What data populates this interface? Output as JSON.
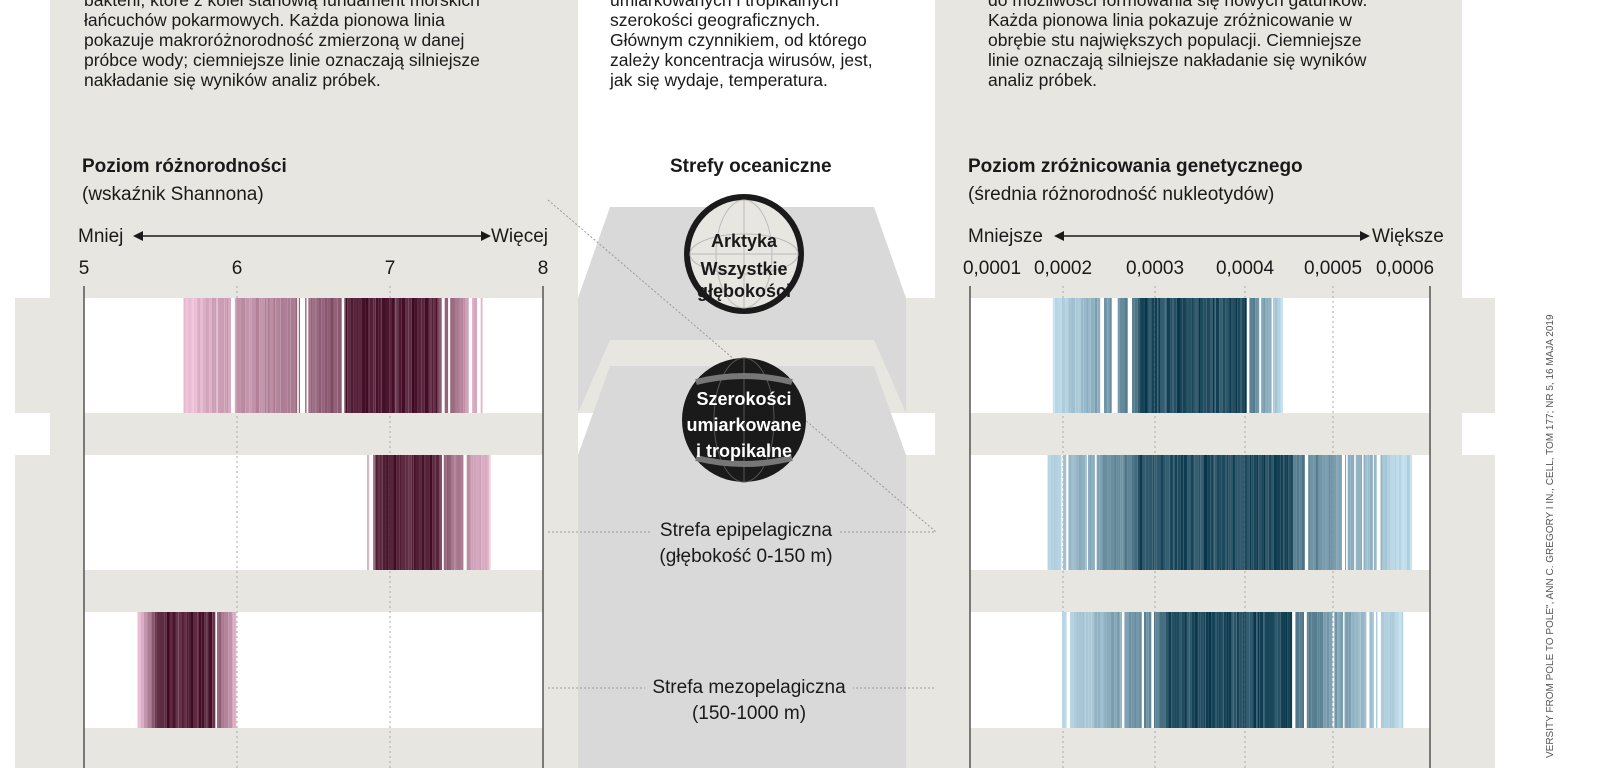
{
  "left_text": [
    "bakterii, które z kolei stanowią fundament morskich",
    "łańcuchów pokarmowych. Każda pionowa linia",
    "pokazuje makroróżnorodność zmierzoną w danej",
    "próbce wody; ciemniejsze linie oznaczają silniejsze",
    "nakładanie się wyników analiz próbek."
  ],
  "center_text": [
    "umiarkowanych i tropikalnych",
    "szerokości geograficznych.",
    "Głównym czynnikiem, od którego",
    "zależy koncentracja wirusów, jest,",
    "jak się wydaje, temperatura."
  ],
  "right_text": [
    "do możliwości formowania się nowych gatunków.",
    "Każda pionowa linia pokazuje zróżnicowanie w",
    "obrębie stu największych populacji. Ciemniejsze",
    "linie oznaczają silniejsze nakładanie się wyników",
    "analiz próbek."
  ],
  "center": {
    "title": "Strefy oceaniczne",
    "globe1": [
      "Arktyka",
      "Wszystkie",
      "głębokości"
    ],
    "globe2": [
      "Szerokości",
      "umiarkowane",
      "i tropikalne"
    ],
    "zone1": [
      "Strefa epipelagiczna",
      "(głębokość 0-150 m)"
    ],
    "zone2": [
      "Strefa mezopelagiczna",
      "(150-1000 m)"
    ]
  },
  "credit": "VERSITY FROM POLE TO POLE\", ANN C. GREGORY I IN., CELL, TOM 177; NR 5, 16 MAJA 2019",
  "colors": {
    "panel": "#e7e6e1",
    "center": "#d9d9d9",
    "magenta_dark": "#3d0820",
    "magenta_light": "#f2c6dc",
    "blue_dark": "#063448",
    "blue_light": "#c6e3f2"
  },
  "chart_data": [
    {
      "type": "strip",
      "title": "Poziom różnorodności",
      "subtitle": "(wskaźnik Shannona)",
      "less_label": "Mniej",
      "more_label": "Więcej",
      "ticks": [
        "5",
        "6",
        "7",
        "8"
      ],
      "xlim": [
        5,
        8
      ],
      "rows": [
        {
          "range": [
            5.65,
            7.6
          ],
          "core": [
            6.7,
            7.3
          ]
        },
        {
          "range": [
            6.85,
            7.65
          ],
          "core": [
            6.9,
            7.3
          ]
        },
        {
          "range": [
            5.35,
            6.0
          ],
          "core": [
            5.45,
            5.85
          ]
        }
      ]
    },
    {
      "type": "strip",
      "title": "Poziom zróżnicowania genetycznego",
      "subtitle": "(średnia różnorodność nukleotydów)",
      "less_label": "Mniejsze",
      "more_label": "Większe",
      "ticks": [
        "0,0001",
        "0,0002",
        "0,0003",
        "0,0004",
        "0,0005",
        "0,0006"
      ],
      "xlim": [
        0.0001,
        0.0006
      ],
      "rows": [
        {
          "range": [
            0.00019,
            0.00044
          ],
          "core": [
            0.00028,
            0.0004
          ]
        },
        {
          "range": [
            0.00018,
            0.00058
          ],
          "core": [
            0.00028,
            0.00045
          ]
        },
        {
          "range": [
            0.0002,
            0.00057
          ],
          "core": [
            0.00031,
            0.00045
          ]
        }
      ]
    }
  ]
}
